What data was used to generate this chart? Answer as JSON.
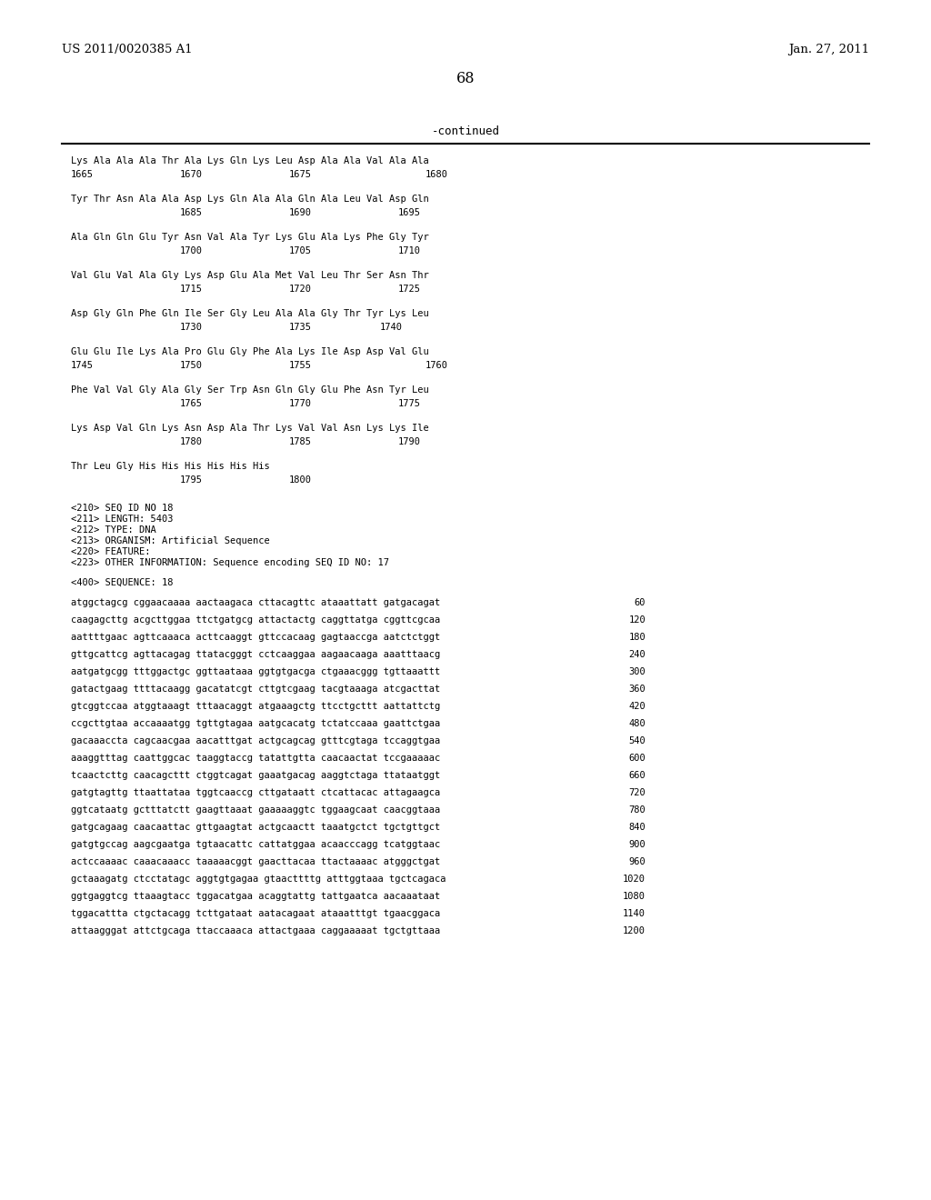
{
  "header_left": "US 2011/0020385 A1",
  "header_right": "Jan. 27, 2011",
  "page_number": "68",
  "continued_label": "-continued",
  "background_color": "#ffffff",
  "text_color": "#000000",
  "mono_font_size": 7.5,
  "header_font_size": 9.5,
  "page_num_font_size": 11.5,
  "aa_groups": [
    {
      "aa": "Lys Ala Ala Ala Thr Ala Lys Gln Lys Leu Asp Ala Ala Val Ala Ala",
      "n1": "1665",
      "n1x": 0,
      "n2": "1670",
      "n2x": 120,
      "n3": "1675",
      "n3x": 240,
      "n4": "1680",
      "n4x": 390
    },
    {
      "aa": "Tyr Thr Asn Ala Ala Asp Lys Gln Ala Ala Gln Ala Leu Val Asp Gln",
      "n1": "",
      "n1x": 0,
      "n2": "1685",
      "n2x": 120,
      "n3": "1690",
      "n3x": 240,
      "n4": "1695",
      "n4x": 360
    },
    {
      "aa": "Ala Gln Gln Glu Tyr Asn Val Ala Tyr Lys Glu Ala Lys Phe Gly Tyr",
      "n1": "",
      "n1x": 0,
      "n2": "1700",
      "n2x": 120,
      "n3": "1705",
      "n3x": 240,
      "n4": "1710",
      "n4x": 360
    },
    {
      "aa": "Val Glu Val Ala Gly Lys Asp Glu Ala Met Val Leu Thr Ser Asn Thr",
      "n1": "",
      "n1x": 0,
      "n2": "1715",
      "n2x": 120,
      "n3": "1720",
      "n3x": 240,
      "n4": "1725",
      "n4x": 360
    },
    {
      "aa": "Asp Gly Gln Phe Gln Ile Ser Gly Leu Ala Ala Gly Thr Tyr Lys Leu",
      "n1": "",
      "n1x": 0,
      "n2": "1730",
      "n2x": 120,
      "n3": "1735",
      "n3x": 240,
      "n4": "1740",
      "n4x": 340
    },
    {
      "aa": "Glu Glu Ile Lys Ala Pro Glu Gly Phe Ala Lys Ile Asp Asp Val Glu",
      "n1": "1745",
      "n1x": 0,
      "n2": "1750",
      "n2x": 120,
      "n3": "1755",
      "n3x": 240,
      "n4": "1760",
      "n4x": 390
    },
    {
      "aa": "Phe Val Val Gly Ala Gly Ser Trp Asn Gln Gly Glu Phe Asn Tyr Leu",
      "n1": "",
      "n1x": 0,
      "n2": "1765",
      "n2x": 120,
      "n3": "1770",
      "n3x": 240,
      "n4": "1775",
      "n4x": 360
    },
    {
      "aa": "Lys Asp Val Gln Lys Asn Asp Ala Thr Lys Val Val Asn Lys Lys Ile",
      "n1": "",
      "n1x": 0,
      "n2": "1780",
      "n2x": 120,
      "n3": "1785",
      "n3x": 240,
      "n4": "1790",
      "n4x": 360
    },
    {
      "aa": "Thr Leu Gly His His His His His His",
      "n1": "",
      "n1x": 0,
      "n2": "1795",
      "n2x": 120,
      "n3": "1800",
      "n3x": 240,
      "n4": "",
      "n4x": 0
    }
  ],
  "seq_info": [
    "<210> SEQ ID NO 18",
    "<211> LENGTH: 5403",
    "<212> TYPE: DNA",
    "<213> ORGANISM: Artificial Sequence",
    "<220> FEATURE:",
    "<223> OTHER INFORMATION: Sequence encoding SEQ ID NO: 17"
  ],
  "seq_label": "<400> SEQUENCE: 18",
  "dna_lines": [
    [
      "atggctagcg cggaacaaaa aactaagaca cttacagttc ataaattatt gatgacagat",
      "60"
    ],
    [
      "caagagcttg acgcttggaa ttctgatgcg attactactg caggttatga cggttcgcaa",
      "120"
    ],
    [
      "aattttgaac agttcaaaca acttcaaggt gttccacaag gagtaaccga aatctctggt",
      "180"
    ],
    [
      "gttgcattcg agttacagag ttatacgggt cctcaaggaa aagaacaaga aaatttaacg",
      "240"
    ],
    [
      "aatgatgcgg tttggactgc ggttaataaa ggtgtgacga ctgaaacggg tgttaaattt",
      "300"
    ],
    [
      "gatactgaag ttttacaagg gacatatcgt cttgtcgaag tacgtaaaga atcgacttat",
      "360"
    ],
    [
      "gtcggtccaa atggtaaagt tttaacaggt atgaaagctg ttcctgcttt aattattctg",
      "420"
    ],
    [
      "ccgcttgtaa accaaaatgg tgttgtagaa aatgcacatg tctatccaaa gaattctgaa",
      "480"
    ],
    [
      "gacaaaccta cagcaacgaa aacatttgat actgcagcag gtttcgtaga tccaggtgaa",
      "540"
    ],
    [
      "aaaggtttag caattggcac taaggtaccg tatattgtta caacaactat tccgaaaaac",
      "600"
    ],
    [
      "tcaactcttg caacagcttt ctggtcagat gaaatgacag aaggtctaga ttataatggt",
      "660"
    ],
    [
      "gatgtagttg ttaattataa tggtcaaccg cttgataatt ctcattacac attagaagca",
      "720"
    ],
    [
      "ggtcataatg gctttatctt gaagttaaat gaaaaaggtc tggaagcaat caacggtaaa",
      "780"
    ],
    [
      "gatgcagaag caacaattac gttgaagtat actgcaactt taaatgctct tgctgttgct",
      "840"
    ],
    [
      "gatgtgccag aagcgaatga tgtaacattc cattatggaa acaacccagg tcatggtaac",
      "900"
    ],
    [
      "actccaaaac caaacaaacc taaaaacggt gaacttacaa ttactaaaac atgggctgat",
      "960"
    ],
    [
      "gctaaagatg ctcctatagc aggtgtgagaa gtaacttttg atttggtaaa tgctcagaca",
      "1020"
    ],
    [
      "ggtgaggtcg ttaaagtacc tggacatgaa acaggtattg tattgaatca aacaaataat",
      "1080"
    ],
    [
      "tggacattta ctgctacagg tcttgataat aatacagaat ataaatttgt tgaacggaca",
      "1140"
    ],
    [
      "attaagggat attctgcaga ttaccaaaca attactgaaa caggaaaaat tgctgttaaa",
      "1200"
    ]
  ]
}
